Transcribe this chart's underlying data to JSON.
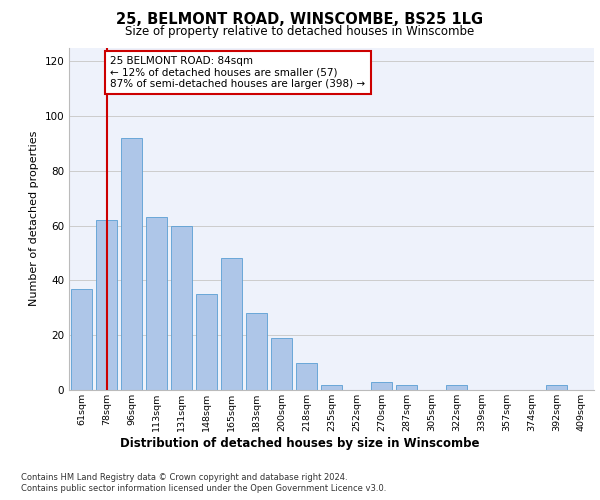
{
  "title1": "25, BELMONT ROAD, WINSCOMBE, BS25 1LG",
  "title2": "Size of property relative to detached houses in Winscombe",
  "xlabel": "Distribution of detached houses by size in Winscombe",
  "ylabel": "Number of detached properties",
  "categories": [
    "61sqm",
    "78sqm",
    "96sqm",
    "113sqm",
    "131sqm",
    "148sqm",
    "165sqm",
    "183sqm",
    "200sqm",
    "218sqm",
    "235sqm",
    "252sqm",
    "270sqm",
    "287sqm",
    "305sqm",
    "322sqm",
    "339sqm",
    "357sqm",
    "374sqm",
    "392sqm",
    "409sqm"
  ],
  "values": [
    37,
    62,
    92,
    63,
    60,
    35,
    48,
    28,
    19,
    10,
    2,
    0,
    3,
    2,
    0,
    2,
    0,
    0,
    0,
    2,
    0
  ],
  "bar_color": "#aec6e8",
  "bar_edge_color": "#5a9fd4",
  "bar_width": 0.85,
  "vline_x": 1.0,
  "vline_color": "#cc0000",
  "annotation_text": "25 BELMONT ROAD: 84sqm\n← 12% of detached houses are smaller (57)\n87% of semi-detached houses are larger (398) →",
  "annotation_box_color": "#ffffff",
  "annotation_box_edge_color": "#cc0000",
  "ylim": [
    0,
    125
  ],
  "yticks": [
    0,
    20,
    40,
    60,
    80,
    100,
    120
  ],
  "grid_color": "#cccccc",
  "background_color": "#eef2fb",
  "footer1": "Contains HM Land Registry data © Crown copyright and database right 2024.",
  "footer2": "Contains public sector information licensed under the Open Government Licence v3.0."
}
